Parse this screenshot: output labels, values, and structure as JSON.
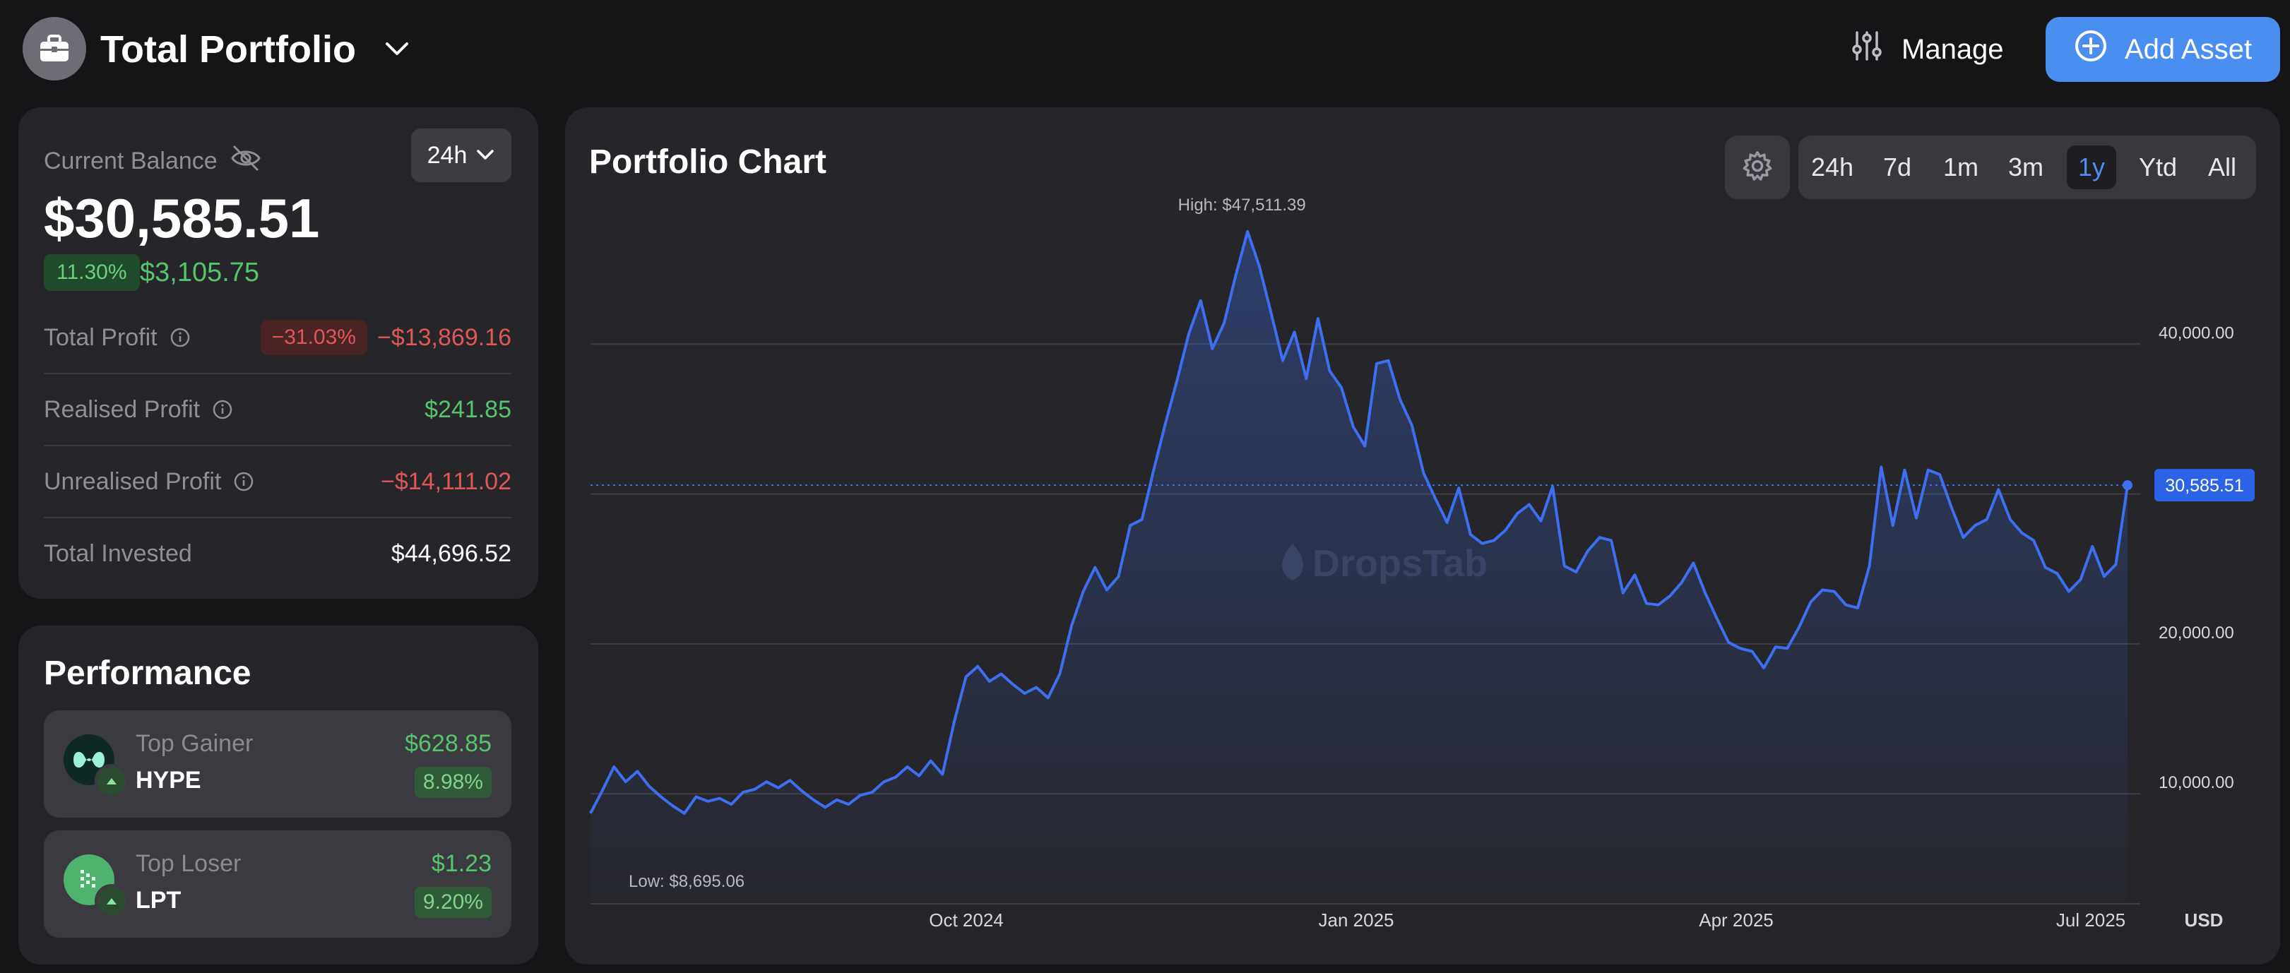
{
  "header": {
    "title": "Total Portfolio",
    "manage_label": "Manage",
    "add_asset_label": "Add Asset"
  },
  "balance": {
    "label": "Current Balance",
    "period": "24h",
    "value": "$30,585.51",
    "change_pct": "11.30%",
    "change_value": "$3,105.75",
    "rows": [
      {
        "label": "Total Profit",
        "badge": "−31.03%",
        "value": "−$13,869.16"
      },
      {
        "label": "Realised Profit",
        "value": "$241.85"
      },
      {
        "label": "Unrealised Profit",
        "value": "−$14,111.02"
      },
      {
        "label": "Total Invested",
        "value": "$44,696.52"
      }
    ]
  },
  "performance": {
    "title": "Performance",
    "items": [
      {
        "kind": "Top Gainer",
        "symbol": "HYPE",
        "amount": "$628.85",
        "pct": "8.98%"
      },
      {
        "kind": "Top Loser",
        "symbol": "LPT",
        "amount": "$1.23",
        "pct": "9.20%"
      }
    ]
  },
  "chart": {
    "title": "Portfolio Chart",
    "ranges": [
      "24h",
      "7d",
      "1m",
      "3m",
      "1y",
      "Ytd",
      "All"
    ],
    "active_range": "1y",
    "watermark": "DropsTab"
  },
  "colors": {
    "accent": "#4a8ef0",
    "positive": "#56c46b",
    "negative": "#e0575a",
    "line": "#3d6ff0"
  },
  "chart_data": {
    "type": "area",
    "title": "Portfolio Chart",
    "x_ticks": [
      "Oct 2024",
      "Jan 2025",
      "Apr 2025",
      "Jul 2025"
    ],
    "y_ticks": [
      "10,000.00",
      "20,000.00",
      "40,000.00"
    ],
    "unit": "USD",
    "ylim": [
      5000,
      50000
    ],
    "high_label": "High: $47,511.39",
    "low_label": "Low: $8,695.06",
    "current_label": "30,585.51",
    "current_value": 30585.51,
    "grid": true,
    "series": [
      {
        "values": [
          8700,
          10200,
          11800,
          10800,
          11500,
          10500,
          9800,
          9200,
          8695,
          9800,
          9500,
          9700,
          9300,
          10100,
          10300,
          10800,
          10400,
          10900,
          10200,
          9600,
          9100,
          9600,
          9300,
          9900,
          10100,
          10800,
          11100,
          11800,
          11200,
          12200,
          11300,
          14800,
          17800,
          18500,
          17500,
          18000,
          17300,
          16700,
          17100,
          16400,
          18000,
          21200,
          23500,
          25100,
          23600,
          24500,
          27900,
          28300,
          31600,
          34700,
          37600,
          40700,
          42900,
          39700,
          41400,
          44600,
          47511,
          45200,
          42100,
          38900,
          40800,
          37700,
          41700,
          38200,
          37100,
          34500,
          33200,
          38700,
          38900,
          36300,
          34600,
          31400,
          29700,
          28100,
          30400,
          27300,
          26700,
          26900,
          27600,
          28700,
          29300,
          28200,
          30500,
          25200,
          24800,
          26200,
          27100,
          26900,
          23400,
          24600,
          22700,
          22600,
          23200,
          24100,
          25400,
          23400,
          21700,
          20100,
          19700,
          19500,
          18400,
          19800,
          19700,
          21100,
          22800,
          23600,
          23500,
          22600,
          22400,
          25200,
          31800,
          27900,
          31600,
          28400,
          31600,
          31300,
          29100,
          27100,
          27900,
          28300,
          30300,
          28300,
          27400,
          26900,
          25100,
          24700,
          23500,
          24300,
          26500,
          24500,
          25300,
          30585.51
        ]
      }
    ]
  }
}
